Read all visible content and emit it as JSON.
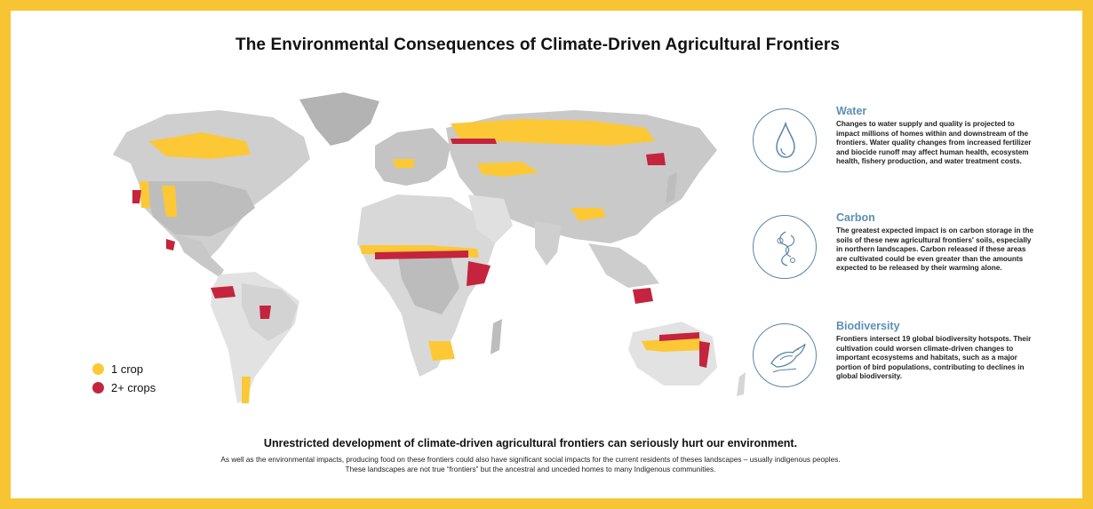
{
  "title": "The Environmental Consequences of Climate-Driven Agricultural Frontiers",
  "colors": {
    "frame": "#f7c433",
    "one_crop": "#fdc836",
    "two_plus_crops": "#c4243e",
    "land_dark": "#b3b3b3",
    "land_mid": "#cccccc",
    "land_light": "#e2e2e2",
    "panel_accent": "#5e8fb5"
  },
  "legend": {
    "items": [
      {
        "label": "1 crop",
        "color": "#fdc836"
      },
      {
        "label": "2+ crops",
        "color": "#c4243e"
      }
    ]
  },
  "panels": {
    "water": {
      "icon": "water-drop-icon",
      "heading": "Water",
      "text": "Changes to water supply and quality is projected to impact millions of homes within and downstream of the frontiers. Water quality changes from increased fertilizer and biocide runoff may affect human health, ecosystem health, fishery production, and water treatment costs."
    },
    "carbon": {
      "icon": "carbon-swirl-icon",
      "heading": "Carbon",
      "text": "The greatest expected impact is on carbon storage in the soils of these new agricultural frontiers' soils, especially in northern landscapes. Carbon released if these areas are cultivated could be even greater than the amounts expected to be released by their warming alone."
    },
    "biodiversity": {
      "icon": "bird-icon",
      "heading": "Biodiversity",
      "text": "Frontiers intersect 19 global biodiversity hotspots. Their cultivation could worsen climate-driven changes to important ecosystems and habitats, such as a major portion of bird populations, contributing to declines in global biodiversity."
    }
  },
  "bottom": {
    "heading": "Unrestricted development of climate-driven agricultural frontiers can seriously hurt our environment.",
    "line1": "As well as the environmental impacts, producing food on these frontiers could also have significant social impacts for the current residents of theses landscapes – usually indigenous peoples.",
    "line2": "These landscapes are not true “frontiers” but the ancestral and unceded homes to many Indigenous communities."
  }
}
